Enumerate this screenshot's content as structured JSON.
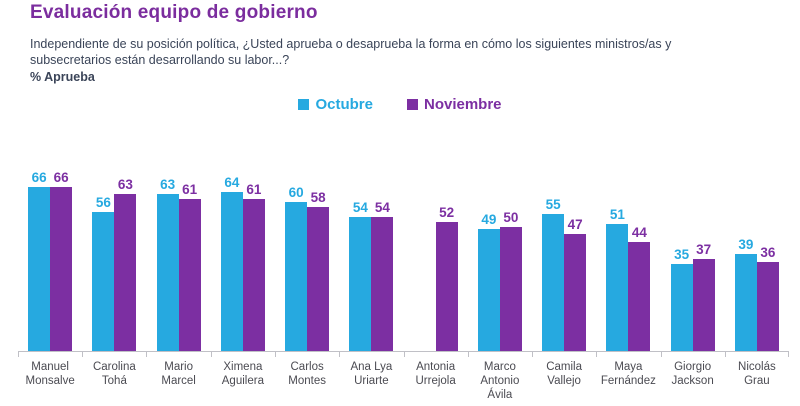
{
  "header": {
    "title": "Evaluación equipo de gobierno",
    "subtitle_line1": "Independiente de su posición política, ¿Usted aprueba o desaprueba la forma en cómo los siguientes ministros/as y",
    "subtitle_line2": "subsecretarios están desarrollando su labor...?",
    "metric_label": "% Aprueba"
  },
  "legend": [
    {
      "label": "Octubre",
      "color": "#26A9E0"
    },
    {
      "label": "Noviembre",
      "color": "#7C2FA2"
    }
  ],
  "colors": {
    "title": "#7B2D9E",
    "subtitle": "#3A4458",
    "october": "#26A9E0",
    "november": "#7C2FA2",
    "axis": "#C0C0C6",
    "category_label": "#4B4B52"
  },
  "chart_data": {
    "type": "bar",
    "title": "Evaluación equipo de gobierno",
    "subtitle": "Independiente de su posición política, ¿Usted aprueba o desaprueba la forma en cómo los siguientes ministros/as y subsecretarios están desarrollando su labor...?",
    "metric": "% Aprueba",
    "categories": [
      "Manuel Monsalve",
      "Carolina Tohá",
      "Mario Marcel",
      "Ximena Aguilera",
      "Carlos Montes",
      "Ana Lya Uriarte",
      "Antonia Urrejola",
      "Marco Antonio Ávila",
      "Camila Vallejo",
      "Maya Fernández",
      "Giorgio Jackson",
      "Nicolás Grau"
    ],
    "series": [
      {
        "name": "Octubre",
        "color": "#26A9E0",
        "values": [
          66,
          56,
          63,
          64,
          60,
          54,
          null,
          49,
          55,
          51,
          35,
          39
        ]
      },
      {
        "name": "Noviembre",
        "color": "#7C2FA2",
        "values": [
          66,
          63,
          61,
          61,
          58,
          54,
          52,
          50,
          47,
          44,
          37,
          36
        ]
      }
    ],
    "ylim": [
      0,
      85
    ],
    "grid": false,
    "legend_position": "top-center",
    "data_labels": true
  }
}
